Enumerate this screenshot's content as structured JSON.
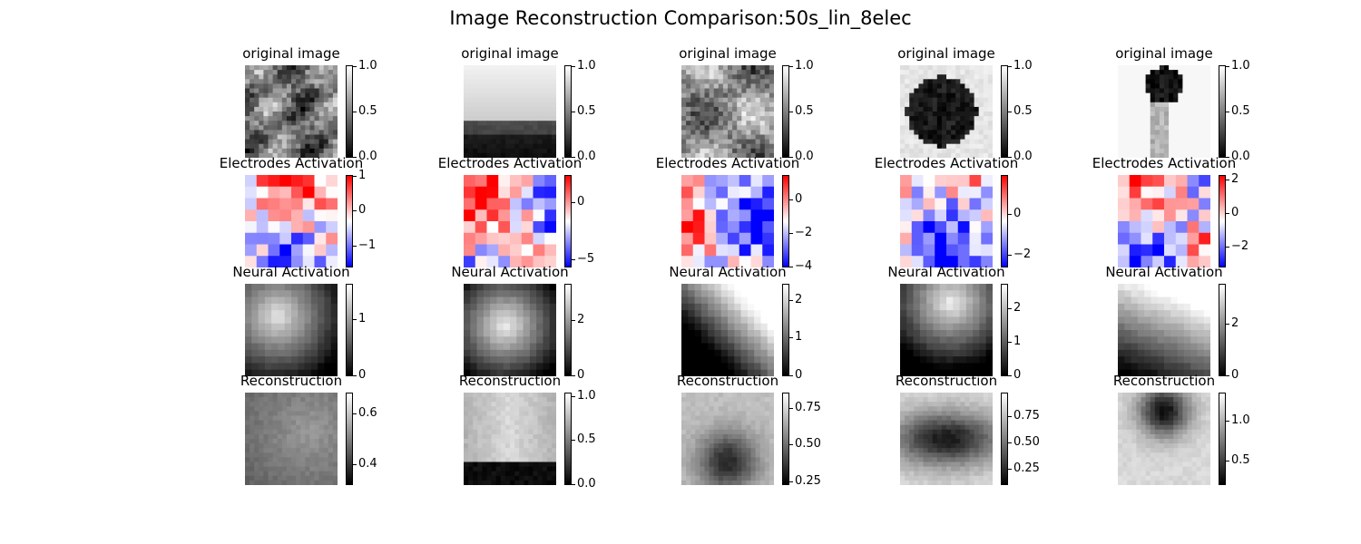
{
  "title": "Image Reconstruction Comparison:50s_lin_8elec",
  "chart_data": {
    "type": "heatmap",
    "title": "Image Reconstruction Comparison:50s_lin_8elec",
    "rows": [
      {
        "subplot_title": "original image",
        "colormap": "gray",
        "grid": 20
      },
      {
        "subplot_title": "Electrodes Activation",
        "colormap": "bwr",
        "grid": 8
      },
      {
        "subplot_title": "Neural Activation",
        "colormap": "gray",
        "grid": 14
      },
      {
        "subplot_title": "Reconstruction",
        "colormap": "gray",
        "grid": 20
      }
    ],
    "panels": [
      [
        {
          "colorbar": {
            "range": [
              0,
              1
            ],
            "ticks": [
              {
                "v": 0,
                "label": "0.0"
              },
              {
                "v": 0.5,
                "label": "0.5"
              },
              {
                "v": 1,
                "label": "1.0"
              }
            ]
          }
        },
        {
          "colorbar": {
            "range": [
              -1.6,
              1.0
            ],
            "ticks": [
              {
                "v": -1,
                "label": "−1"
              },
              {
                "v": 0,
                "label": "0"
              },
              {
                "v": 1,
                "label": "1"
              }
            ]
          }
        },
        {
          "colorbar": {
            "range": [
              0,
              1.6
            ],
            "ticks": [
              {
                "v": 0,
                "label": "0"
              },
              {
                "v": 1,
                "label": "1"
              }
            ]
          }
        },
        {
          "colorbar": {
            "range": [
              0.32,
              0.68
            ],
            "ticks": [
              {
                "v": 0.4,
                "label": "0.4"
              },
              {
                "v": 0.6,
                "label": "0.6"
              }
            ]
          }
        }
      ],
      [
        {
          "colorbar": {
            "range": [
              0,
              1
            ],
            "ticks": [
              {
                "v": 0,
                "label": "0.0"
              },
              {
                "v": 0.5,
                "label": "0.5"
              },
              {
                "v": 1,
                "label": "1.0"
              }
            ]
          }
        },
        {
          "colorbar": {
            "range": [
              -5.6,
              2.3
            ],
            "ticks": [
              {
                "v": -5,
                "label": "−5"
              },
              {
                "v": 0,
                "label": "0"
              }
            ]
          }
        },
        {
          "colorbar": {
            "range": [
              0,
              3.3
            ],
            "ticks": [
              {
                "v": 0,
                "label": "0"
              },
              {
                "v": 2,
                "label": "2"
              }
            ]
          }
        },
        {
          "colorbar": {
            "range": [
              0,
              1.03
            ],
            "ticks": [
              {
                "v": 0,
                "label": "0.0"
              },
              {
                "v": 0.5,
                "label": "0.5"
              },
              {
                "v": 1,
                "label": "1.0"
              }
            ]
          }
        }
      ],
      [
        {
          "colorbar": {
            "range": [
              0,
              1
            ],
            "ticks": [
              {
                "v": 0,
                "label": "0.0"
              },
              {
                "v": 0.5,
                "label": "0.5"
              },
              {
                "v": 1,
                "label": "1.0"
              }
            ]
          }
        },
        {
          "colorbar": {
            "range": [
              -4,
              1.4
            ],
            "ticks": [
              {
                "v": -4,
                "label": "−4"
              },
              {
                "v": -2,
                "label": "−2"
              },
              {
                "v": 0,
                "label": "0"
              }
            ]
          }
        },
        {
          "colorbar": {
            "range": [
              0,
              2.4
            ],
            "ticks": [
              {
                "v": 0,
                "label": "0"
              },
              {
                "v": 1,
                "label": "1"
              },
              {
                "v": 2,
                "label": "2"
              }
            ]
          }
        },
        {
          "colorbar": {
            "range": [
              0.23,
              0.85
            ],
            "ticks": [
              {
                "v": 0.25,
                "label": "0.25"
              },
              {
                "v": 0.5,
                "label": "0.50"
              },
              {
                "v": 0.75,
                "label": "0.75"
              }
            ]
          }
        }
      ],
      [
        {
          "colorbar": {
            "range": [
              0,
              1
            ],
            "ticks": [
              {
                "v": 0,
                "label": "0.0"
              },
              {
                "v": 0.5,
                "label": "0.5"
              },
              {
                "v": 1,
                "label": "1.0"
              }
            ]
          }
        },
        {
          "colorbar": {
            "range": [
              -2.6,
              1.9
            ],
            "ticks": [
              {
                "v": -2,
                "label": "−2"
              },
              {
                "v": 0,
                "label": "0"
              }
            ]
          }
        },
        {
          "colorbar": {
            "range": [
              0,
              2.7
            ],
            "ticks": [
              {
                "v": 0,
                "label": "0"
              },
              {
                "v": 1,
                "label": "1"
              },
              {
                "v": 2,
                "label": "2"
              }
            ]
          }
        },
        {
          "colorbar": {
            "range": [
              0.1,
              0.97
            ],
            "ticks": [
              {
                "v": 0.25,
                "label": "0.25"
              },
              {
                "v": 0.5,
                "label": "0.50"
              },
              {
                "v": 0.75,
                "label": "0.75"
              }
            ]
          }
        }
      ],
      [
        {
          "colorbar": {
            "range": [
              0,
              1
            ],
            "ticks": [
              {
                "v": 0,
                "label": "0.0"
              },
              {
                "v": 0.5,
                "label": "0.5"
              },
              {
                "v": 1,
                "label": "1.0"
              }
            ]
          }
        },
        {
          "colorbar": {
            "range": [
              -3.2,
              2.2
            ],
            "ticks": [
              {
                "v": -2,
                "label": "−2"
              },
              {
                "v": 0,
                "label": "0"
              },
              {
                "v": 2,
                "label": "2"
              }
            ]
          }
        },
        {
          "colorbar": {
            "range": [
              0,
              3.5
            ],
            "ticks": [
              {
                "v": 0,
                "label": "0"
              },
              {
                "v": 2,
                "label": "2"
              }
            ]
          }
        },
        {
          "colorbar": {
            "range": [
              0.2,
              1.35
            ],
            "ticks": [
              {
                "v": 0.5,
                "label": "0.5"
              },
              {
                "v": 1,
                "label": "1.0"
              }
            ]
          }
        }
      ]
    ]
  }
}
